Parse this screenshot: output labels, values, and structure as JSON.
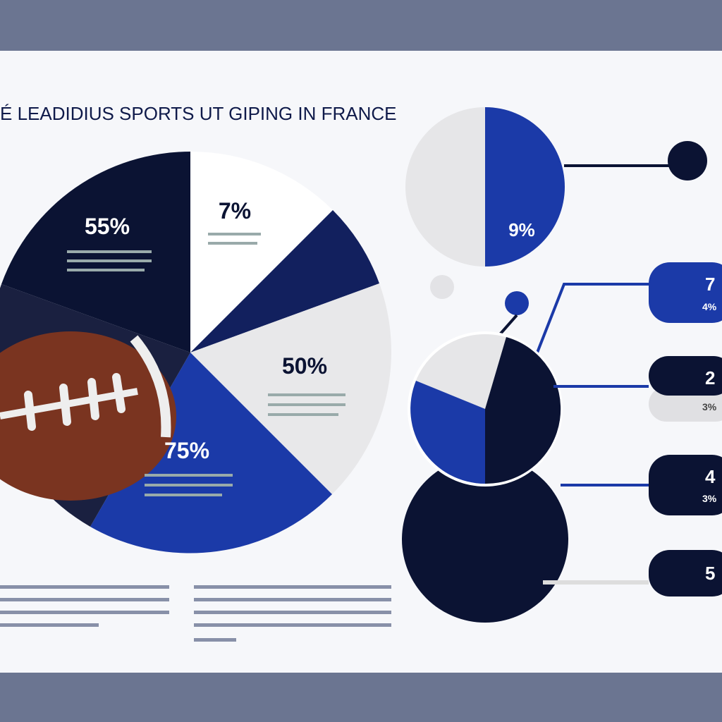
{
  "header": {
    "title": "É LEADIDIUS SPORTS UT GIPING IN FRANCE"
  },
  "main_pie": {
    "labels": [
      "55%",
      "7%",
      "50%",
      "75%"
    ]
  },
  "top_pie": {
    "label": "9%"
  },
  "tabs": [
    {
      "number": "7",
      "percent": "4%"
    },
    {
      "number": "2",
      "percent": "3%"
    },
    {
      "number": "4",
      "percent": "3%"
    },
    {
      "number": "5"
    }
  ]
}
